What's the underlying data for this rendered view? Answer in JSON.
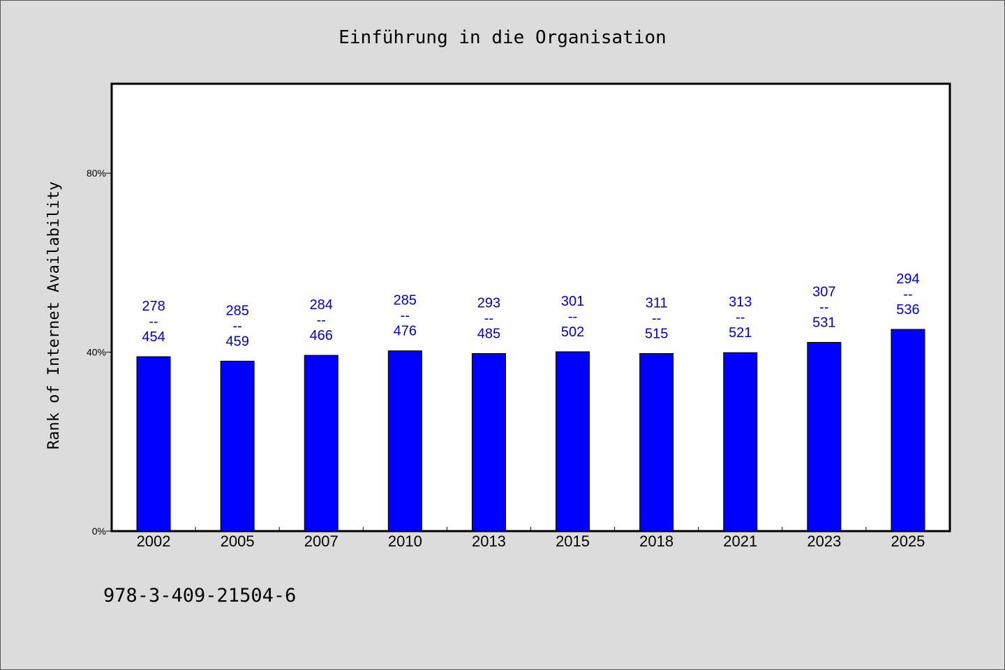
{
  "chart_data": {
    "type": "bar",
    "title": "Einführung in die Organisation",
    "ylabel": "Rank of Internet Availability",
    "xlabel": "",
    "categories": [
      "2002",
      "2005",
      "2007",
      "2010",
      "2013",
      "2015",
      "2018",
      "2021",
      "2023",
      "2025"
    ],
    "values": [
      39,
      38,
      39.3,
      40.3,
      39.7,
      40.1,
      39.7,
      39.9,
      42.2,
      45.1
    ],
    "bar_labels": [
      [
        "278",
        "--",
        "454"
      ],
      [
        "285",
        "--",
        "459"
      ],
      [
        "284",
        "--",
        "466"
      ],
      [
        "285",
        "--",
        "476"
      ],
      [
        "293",
        "--",
        "485"
      ],
      [
        "301",
        "--",
        "502"
      ],
      [
        "311",
        "--",
        "515"
      ],
      [
        "313",
        "--",
        "521"
      ],
      [
        "307",
        "--",
        "531"
      ],
      [
        "294",
        "--",
        "536"
      ]
    ],
    "ylim": [
      0,
      100
    ],
    "yticks": [
      0,
      40,
      80
    ],
    "ytick_labels": [
      "0%",
      "40%",
      "80%"
    ],
    "bar_color": "#0000ff",
    "label_color": "#0000c8",
    "grid": false,
    "legend": "none"
  },
  "footer": {
    "text": "978-3-409-21504-6"
  }
}
